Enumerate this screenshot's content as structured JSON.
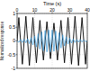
{
  "chart_data": {
    "type": "line",
    "x_label": "Time (s)",
    "y_label": "Normalized response",
    "x": [
      0,
      1,
      2,
      3,
      4,
      5,
      6,
      7,
      8,
      9,
      10,
      11,
      12,
      13,
      14,
      15,
      16,
      17,
      18,
      19,
      20,
      21,
      22,
      23,
      24,
      25,
      26,
      27,
      28,
      29,
      30,
      31,
      32,
      33,
      34,
      35,
      36,
      37,
      38,
      39,
      40
    ],
    "series": [
      {
        "color": "#000000",
        "values": [
          0,
          0.85,
          0,
          -0.85,
          0,
          0.9,
          0,
          -0.9,
          0,
          0.85,
          0,
          -0.8,
          0,
          0.75,
          0,
          -0.7,
          0,
          0.7,
          0,
          -0.65,
          0,
          0.65,
          0,
          -0.7,
          0,
          0.75,
          0,
          -0.8,
          0,
          0.85,
          0,
          -0.85,
          0,
          0.9,
          0,
          -0.9,
          0,
          0.85,
          0,
          -0.85,
          0
        ]
      },
      {
        "color": "#3a9ad9",
        "values": [
          0,
          -0.05,
          0.05,
          -0.06,
          0.06,
          -0.07,
          0.08,
          -0.1,
          0.12,
          -0.15,
          0.18,
          -0.22,
          0.26,
          -0.3,
          0.33,
          -0.36,
          0.38,
          -0.4,
          0.4,
          -0.4,
          0.4,
          -0.38,
          0.36,
          -0.33,
          0.3,
          -0.26,
          0.22,
          -0.18,
          0.15,
          -0.12,
          0.1,
          -0.08,
          0.07,
          -0.06,
          0.05,
          -0.05,
          0.05,
          -0.04,
          0.04,
          -0.03,
          0
        ]
      }
    ],
    "xlim": [
      0,
      40
    ],
    "xticks": [
      0,
      10,
      20,
      30,
      40
    ],
    "ylim": [
      -1,
      1
    ],
    "yticks": [
      -1,
      -0.5,
      0,
      0.5,
      1
    ],
    "grid": true
  }
}
